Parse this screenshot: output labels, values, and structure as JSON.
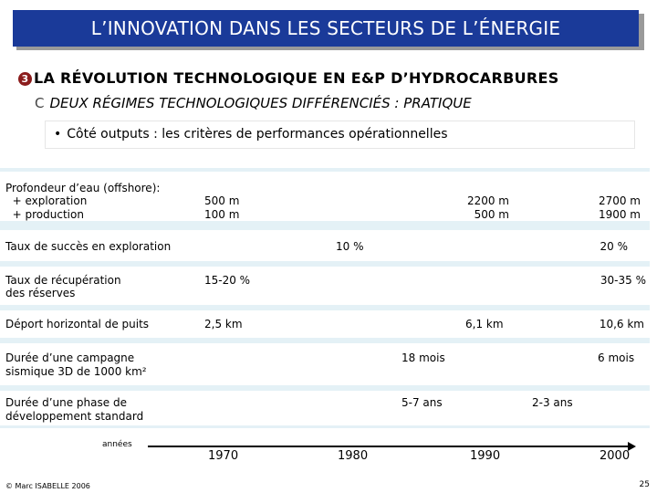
{
  "title": "L’INNOVATION DANS LES SECTEURS DE L’ÉNERGIE",
  "section": {
    "number_icon": "3",
    "label": "LA RÉVOLUTION TECHNOLOGIQUE EN E&P D’HYDROCARBURES"
  },
  "subsection": {
    "letter": "C",
    "label": "DEUX RÉGIMES TECHNOLOGIQUES DIFFÉRENCIÉS : PRATIQUE"
  },
  "note": {
    "bullet": "•",
    "text": "Côté outputs : les critères de performances opérationnelles"
  },
  "table": {
    "rows": [
      {
        "label_lines": [
          "Profondeur d’eau (offshore):",
          "  + exploration",
          "  + production"
        ],
        "values": [
          {
            "col": "1970",
            "lines": [
              "500 m",
              "100 m"
            ]
          },
          {
            "col": "1990",
            "lines": [
              "2200 m",
              "500 m"
            ]
          },
          {
            "col": "2000",
            "lines": [
              "2700 m",
              "1900 m"
            ]
          }
        ]
      },
      {
        "label_lines": [
          "Taux de succès en exploration"
        ],
        "values": [
          {
            "col": "1980",
            "lines": [
              "10 %"
            ]
          },
          {
            "col": "2000",
            "lines": [
              "20 %"
            ]
          }
        ]
      },
      {
        "label_lines": [
          "Taux de récupération",
          "des réserves"
        ],
        "values": [
          {
            "col": "1970",
            "lines": [
              "15-20 %"
            ]
          },
          {
            "col": "2000",
            "lines": [
              "30-35 %"
            ]
          }
        ]
      },
      {
        "label_lines": [
          "Déport horizontal de puits"
        ],
        "values": [
          {
            "col": "1970",
            "lines": [
              "2,5 km"
            ]
          },
          {
            "col": "1990",
            "lines": [
              "6,1 km"
            ]
          },
          {
            "col": "2000",
            "lines": [
              "10,6 km"
            ]
          }
        ]
      },
      {
        "label_lines": [
          "Durée d’une campagne",
          "sismique 3D de 1000 km²"
        ],
        "values": [
          {
            "col": "1980-1990",
            "lines": [
              "18 mois"
            ]
          },
          {
            "col": "2000",
            "lines": [
              "6 mois"
            ]
          }
        ]
      },
      {
        "label_lines": [
          "Durée d’une phase de",
          "développement standard"
        ],
        "values": [
          {
            "col": "1980-1990",
            "lines": [
              "5-7 ans"
            ]
          },
          {
            "col": "1990-2000",
            "lines": [
              "2-3 ans"
            ]
          }
        ]
      }
    ]
  },
  "axis": {
    "label": "années",
    "years": [
      "1970",
      "1980",
      "1990",
      "2000"
    ]
  },
  "footer": {
    "copyright": "© Marc ISABELLE 2006",
    "page": "25"
  }
}
